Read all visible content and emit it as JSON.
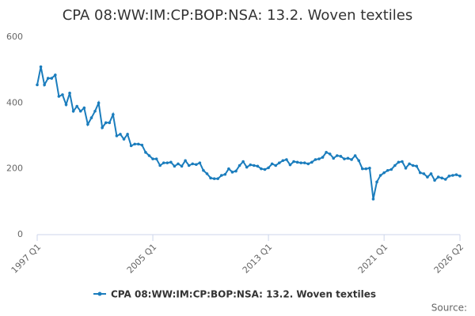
{
  "chart_data": {
    "type": "line",
    "title": "CPA 08:WW:IM:CP:BOP:NSA: 13.2. Woven textiles",
    "source": "Source:",
    "categories": [
      "1997 Q1",
      null,
      null,
      null,
      null,
      null,
      null,
      null,
      null,
      null,
      null,
      null,
      null,
      null,
      null,
      null,
      null,
      null,
      null,
      null,
      null,
      null,
      null,
      null,
      null,
      null,
      null,
      null,
      null,
      null,
      null,
      null,
      "2005 Q1",
      null,
      null,
      null,
      null,
      null,
      null,
      null,
      null,
      null,
      null,
      null,
      null,
      null,
      null,
      null,
      null,
      null,
      null,
      null,
      null,
      null,
      null,
      null,
      null,
      null,
      null,
      null,
      null,
      null,
      null,
      null,
      "2013 Q1",
      null,
      null,
      null,
      null,
      null,
      null,
      null,
      null,
      null,
      null,
      null,
      null,
      null,
      null,
      null,
      null,
      null,
      null,
      null,
      null,
      null,
      null,
      null,
      null,
      null,
      null,
      null,
      null,
      null,
      null,
      null,
      "2021 Q1",
      null,
      null,
      null,
      null,
      null,
      null,
      null,
      null,
      null,
      null,
      null,
      null,
      null,
      null,
      null,
      null,
      null,
      null,
      null,
      null,
      "2026 Q2"
    ],
    "series": [
      {
        "name": "CPA 08:WW:IM:CP:BOP:NSA: 13.2. Woven textiles",
        "color": "#1b7dbd",
        "values": [
          455,
          510,
          455,
          475,
          475,
          485,
          420,
          425,
          395,
          430,
          375,
          390,
          375,
          385,
          335,
          355,
          375,
          400,
          325,
          340,
          340,
          365,
          300,
          305,
          290,
          305,
          270,
          275,
          275,
          272,
          250,
          240,
          230,
          230,
          210,
          218,
          218,
          220,
          208,
          215,
          208,
          225,
          210,
          215,
          213,
          218,
          195,
          185,
          172,
          170,
          170,
          180,
          183,
          200,
          190,
          193,
          210,
          222,
          205,
          212,
          210,
          208,
          200,
          198,
          203,
          215,
          210,
          218,
          225,
          228,
          212,
          222,
          220,
          218,
          218,
          215,
          220,
          228,
          230,
          235,
          250,
          245,
          232,
          240,
          238,
          230,
          232,
          228,
          240,
          225,
          200,
          200,
          202,
          108,
          160,
          180,
          188,
          195,
          198,
          210,
          220,
          222,
          202,
          215,
          210,
          208,
          188,
          185,
          175,
          185,
          165,
          175,
          172,
          168,
          178,
          180,
          182,
          178
        ]
      }
    ],
    "ylim": [
      0,
      600
    ],
    "yticks": [
      0,
      200,
      400,
      600
    ],
    "grid": false,
    "legend": "bottom"
  }
}
